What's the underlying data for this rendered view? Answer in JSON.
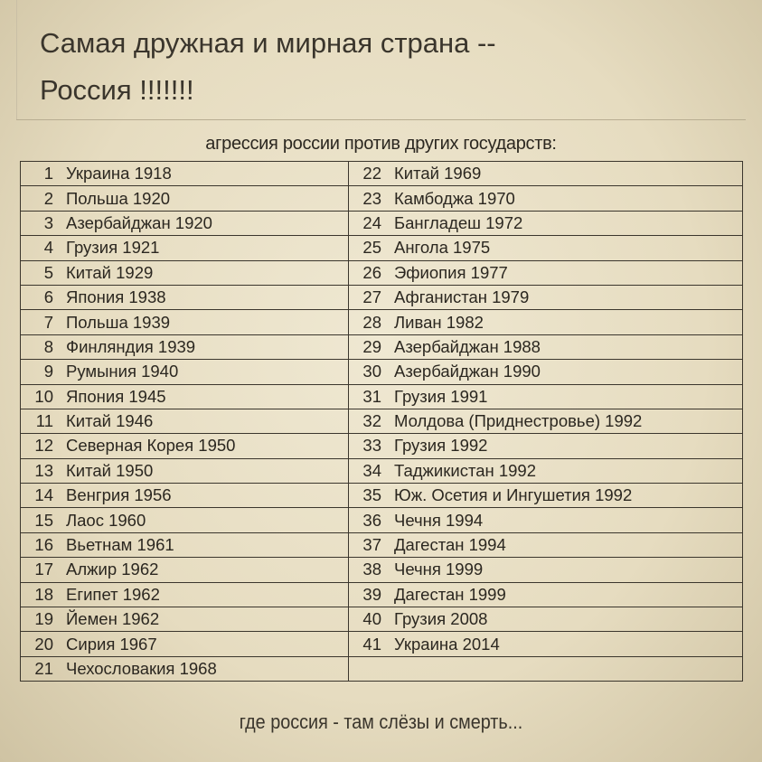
{
  "title_lines": [
    "Самая дружная и мирная страна --",
    "Россия !!!!!!!"
  ],
  "subtitle": "агрессия россии против других государств:",
  "left": [
    [
      "1",
      "Украина 1918"
    ],
    [
      "2",
      "Польша 1920"
    ],
    [
      "3",
      "Азербайджан 1920"
    ],
    [
      "4",
      "Грузия 1921"
    ],
    [
      "5",
      "Китай 1929"
    ],
    [
      "6",
      "Япония 1938"
    ],
    [
      "7",
      "Польша 1939"
    ],
    [
      "8",
      "Финляндия 1939"
    ],
    [
      "9",
      "Румыния 1940"
    ],
    [
      "10",
      "Япония 1945"
    ],
    [
      "11",
      "Китай 1946"
    ],
    [
      "12",
      "Северная Корея 1950"
    ],
    [
      "13",
      "Китай 1950"
    ],
    [
      "14",
      "Венгрия 1956"
    ],
    [
      "15",
      "Лаос 1960"
    ],
    [
      "16",
      "Вьетнам 1961"
    ],
    [
      "17",
      "Алжир 1962"
    ],
    [
      "18",
      "Египет 1962"
    ],
    [
      "19",
      "Йемен 1962"
    ],
    [
      "20",
      "Сирия 1967"
    ],
    [
      "21",
      "Чехословакия 1968"
    ]
  ],
  "right": [
    [
      "22",
      "Китай 1969"
    ],
    [
      "23",
      "Камбоджа 1970"
    ],
    [
      "24",
      "Бангладеш 1972"
    ],
    [
      "25",
      "Ангола 1975"
    ],
    [
      "26",
      "Эфиопия 1977"
    ],
    [
      "27",
      "Афганистан 1979"
    ],
    [
      "28",
      "Ливан 1982"
    ],
    [
      "29",
      "Азербайджан 1988"
    ],
    [
      "30",
      "Азербайджан 1990"
    ],
    [
      "31",
      "Грузия 1991"
    ],
    [
      "32",
      "Молдова (Приднестровье) 1992"
    ],
    [
      "33",
      "Грузия 1992"
    ],
    [
      "34",
      "Таджикистан 1992"
    ],
    [
      "35",
      "Юж. Осетия и Ингушетия 1992"
    ],
    [
      "36",
      "Чечня 1994"
    ],
    [
      "37",
      "Дагестан 1994"
    ],
    [
      "38",
      "Чечня 1999"
    ],
    [
      "39",
      "Дагестан 1999"
    ],
    [
      "40",
      "Грузия 2008"
    ],
    [
      "41",
      "Украина 2014"
    ],
    [
      "",
      ""
    ]
  ],
  "footer": "где россия - там слёзы и смерть..."
}
